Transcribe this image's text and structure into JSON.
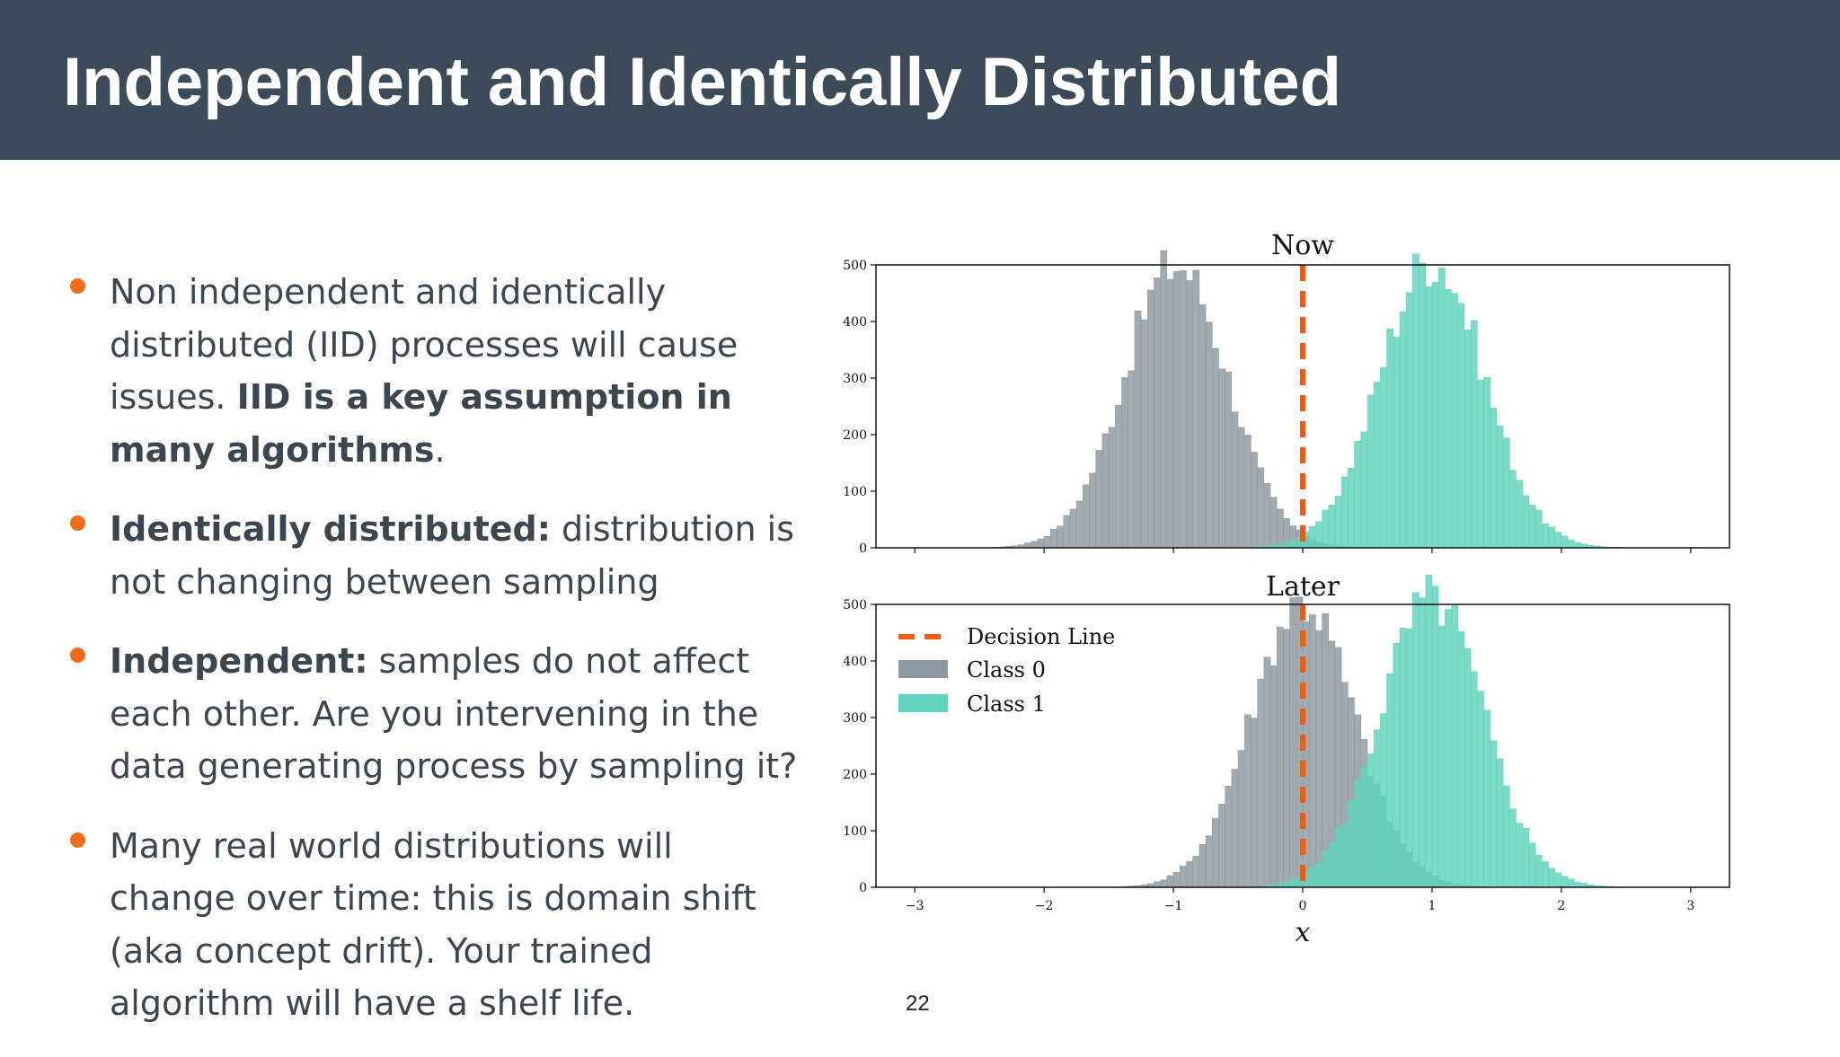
{
  "slide": {
    "title": "Independent and Identically Distributed",
    "page_number": "22"
  },
  "bullets": [
    {
      "lead": "",
      "text": "Non independent and identically distributed (IID) processes will cause issues. ",
      "bold_tail": "IID is a key assumption in many algorithms",
      "end": "."
    },
    {
      "lead": "Identically distributed:",
      "text": " distribution is not changing between sampling",
      "bold_tail": "",
      "end": ""
    },
    {
      "lead": "Independent:",
      "text": " samples do not affect each other. Are you intervening in the data generating process by sampling it?",
      "bold_tail": "",
      "end": ""
    },
    {
      "lead": "",
      "text": "Many real world distributions will change over time: this is domain shift (aka concept drift). Your trained algorithm will have a shelf life.",
      "bold_tail": "",
      "end": ""
    }
  ],
  "colors": {
    "header_bg": "#3d4a57",
    "bullet": "#f06d1a",
    "class0": "#8c97a0",
    "class1": "#5fd3bb",
    "decision": "#f05a14"
  },
  "chart_data": [
    {
      "type": "histogram",
      "title": "Now",
      "xlim": [
        -3.3,
        3.3
      ],
      "ylim": [
        0,
        500
      ],
      "yticks": [
        "0",
        "100",
        "200",
        "300",
        "400",
        "500"
      ],
      "decision_line_x": 0,
      "class0": {
        "center": -0.98,
        "sigma": 0.4,
        "peak": 500
      },
      "class1": {
        "center": 1.0,
        "sigma": 0.4,
        "peak": 510
      }
    },
    {
      "type": "histogram",
      "title": "Later",
      "xlim": [
        -3.3,
        3.3
      ],
      "ylim": [
        0,
        500
      ],
      "yticks": [
        "0",
        "100",
        "200",
        "300",
        "400",
        "500"
      ],
      "xticks": [
        "−3",
        "−2",
        "−1",
        "0",
        "1",
        "2",
        "3"
      ],
      "xlabel": "x",
      "decision_line_x": 0,
      "class0": {
        "center": 0.0,
        "sigma": 0.4,
        "peak": 505
      },
      "class1": {
        "center": 1.0,
        "sigma": 0.4,
        "peak": 510
      },
      "legend": {
        "position": "upper-left",
        "entries": [
          "Decision Line",
          "Class 0",
          "Class 1"
        ]
      }
    }
  ]
}
